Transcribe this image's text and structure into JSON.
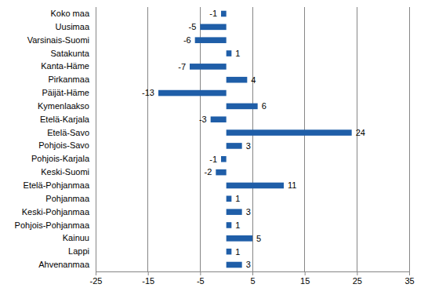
{
  "chart_data": {
    "type": "bar",
    "orientation": "horizontal",
    "categories": [
      "Koko maa",
      "Uusimaa",
      "Varsinais-Suomi",
      "Satakunta",
      "Kanta-Häme",
      "Pirkanmaa",
      "Päijät-Häme",
      "Kymenlaakso",
      "Etelä-Karjala",
      "Etelä-Savo",
      "Pohjois-Savo",
      "Pohjois-Karjala",
      "Keski-Suomi",
      "Etelä-Pohjanmaa",
      "Pohjanmaa",
      "Keski-Pohjanmaa",
      "Pohjois-Pohjanmaa",
      "Kainuu",
      "Lappi",
      "Ahvenanmaa"
    ],
    "values": [
      -1,
      -5,
      -6,
      1,
      -7,
      4,
      -13,
      6,
      -3,
      24,
      3,
      -1,
      -2,
      11,
      1,
      3,
      1,
      5,
      1,
      3
    ],
    "color": "#1f5ea8",
    "xlim": [
      -25,
      35
    ],
    "xticks": [
      -25,
      -15,
      -5,
      5,
      15,
      25,
      35
    ],
    "grid": true,
    "data_labels": true
  }
}
